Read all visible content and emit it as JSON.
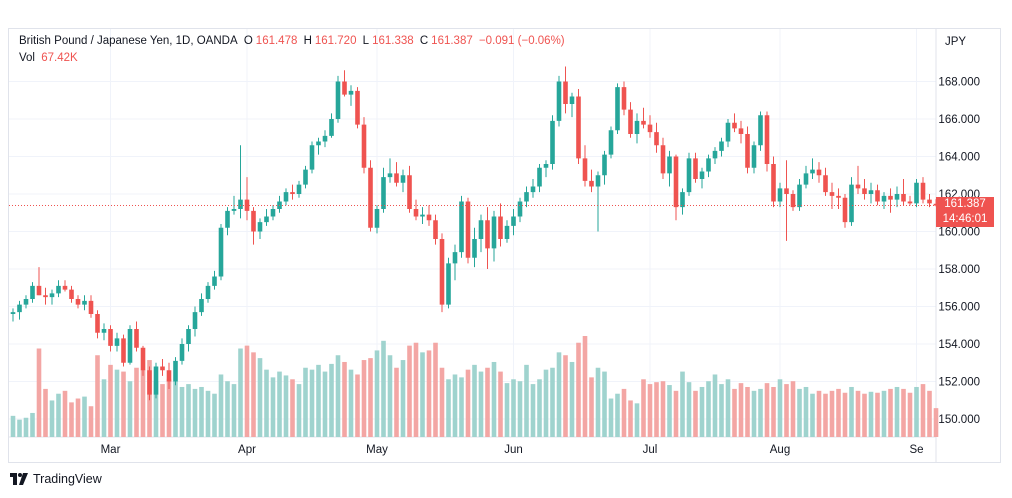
{
  "header": {
    "symbol": "British Pound / Japanese Yen, 1D, OANDA",
    "o_label": "O",
    "o_value": "161.478",
    "h_label": "H",
    "h_value": "161.720",
    "l_label": "L",
    "l_value": "161.338",
    "c_label": "C",
    "c_value": "161.387",
    "change": "−0.091 (−0.06%)",
    "vol_label": "Vol",
    "vol_value": "67.42K"
  },
  "price_tag": {
    "price": "161.387",
    "countdown": "14:46:01"
  },
  "footer": {
    "brand": "TradingView"
  },
  "colors": {
    "up": "#26a69a",
    "down": "#ef5350",
    "vol_up": "#9fd3ce",
    "vol_down": "#f3a6a4",
    "grid": "#f0f3fa"
  },
  "chart_data": {
    "type": "candlestick",
    "currency_label": "JPY",
    "y_ticks": [
      "150.000",
      "152.000",
      "154.000",
      "156.000",
      "158.000",
      "160.000",
      "162.000",
      "164.000",
      "166.000",
      "168.000"
    ],
    "ylim": [
      149.3,
      170.2
    ],
    "x_labels": [
      {
        "label": "Mar",
        "index": 15
      },
      {
        "label": "Apr",
        "index": 36
      },
      {
        "label": "May",
        "index": 56
      },
      {
        "label": "Jun",
        "index": 77
      },
      {
        "label": "Jul",
        "index": 98
      },
      {
        "label": "Aug",
        "index": 118
      },
      {
        "label": "Se",
        "index": 139
      }
    ],
    "last_close": 161.387,
    "candles": [
      [
        155.6,
        155.9,
        155.2,
        155.7,
        22
      ],
      [
        155.7,
        156.3,
        155.3,
        156.1,
        18
      ],
      [
        156.1,
        156.6,
        155.9,
        156.4,
        20
      ],
      [
        156.4,
        157.3,
        156.2,
        157.1,
        25
      ],
      [
        157.1,
        158.1,
        156.6,
        156.6,
        92
      ],
      [
        156.6,
        157.0,
        156.1,
        156.5,
        50
      ],
      [
        156.5,
        156.9,
        156.1,
        156.7,
        38
      ],
      [
        156.7,
        157.4,
        156.5,
        157.1,
        45
      ],
      [
        157.1,
        157.4,
        156.8,
        156.9,
        48
      ],
      [
        156.9,
        157.1,
        156.2,
        156.4,
        36
      ],
      [
        156.4,
        156.6,
        155.9,
        156.1,
        40
      ],
      [
        156.1,
        156.6,
        155.8,
        156.3,
        42
      ],
      [
        156.3,
        156.6,
        155.4,
        155.6,
        32
      ],
      [
        155.6,
        155.8,
        154.3,
        154.6,
        85
      ],
      [
        154.6,
        155.1,
        154.2,
        154.8,
        60
      ],
      [
        154.8,
        155.0,
        153.6,
        153.9,
        75
      ],
      [
        153.9,
        154.6,
        153.6,
        154.3,
        70
      ],
      [
        154.3,
        154.5,
        152.8,
        153.0,
        68
      ],
      [
        153.0,
        155.0,
        152.9,
        154.8,
        58
      ],
      [
        154.8,
        155.2,
        153.6,
        153.8,
        72
      ],
      [
        153.8,
        153.9,
        152.3,
        152.6,
        70
      ],
      [
        152.6,
        152.8,
        151.0,
        151.3,
        80
      ],
      [
        151.3,
        153.0,
        151.1,
        152.8,
        58
      ],
      [
        152.8,
        153.2,
        152.3,
        152.6,
        55
      ],
      [
        152.6,
        153.0,
        151.6,
        152.0,
        60
      ],
      [
        152.0,
        153.3,
        151.8,
        153.1,
        58
      ],
      [
        153.1,
        154.3,
        152.9,
        154.0,
        52
      ],
      [
        154.0,
        155.0,
        153.6,
        154.8,
        55
      ],
      [
        154.8,
        156.0,
        154.4,
        155.7,
        50
      ],
      [
        155.7,
        156.7,
        155.5,
        156.4,
        52
      ],
      [
        156.4,
        157.3,
        156.2,
        157.1,
        48
      ],
      [
        157.1,
        157.9,
        156.9,
        157.6,
        45
      ],
      [
        157.6,
        160.4,
        157.4,
        160.2,
        65
      ],
      [
        160.2,
        161.3,
        159.8,
        161.1,
        58
      ],
      [
        161.1,
        161.9,
        160.9,
        161.2,
        55
      ],
      [
        161.2,
        164.6,
        160.7,
        161.7,
        92
      ],
      [
        161.7,
        162.9,
        160.6,
        161.1,
        95
      ],
      [
        161.1,
        161.3,
        159.3,
        160.0,
        88
      ],
      [
        160.0,
        160.7,
        159.6,
        160.5,
        82
      ],
      [
        160.5,
        161.2,
        160.3,
        160.8,
        70
      ],
      [
        160.8,
        161.4,
        160.6,
        161.2,
        62
      ],
      [
        161.2,
        161.9,
        161.0,
        161.6,
        68
      ],
      [
        161.6,
        162.3,
        161.4,
        162.1,
        64
      ],
      [
        162.1,
        162.5,
        161.7,
        162.0,
        60
      ],
      [
        162.0,
        162.7,
        161.8,
        162.5,
        55
      ],
      [
        162.5,
        163.5,
        162.3,
        163.3,
        72
      ],
      [
        163.3,
        164.8,
        163.1,
        164.6,
        70
      ],
      [
        164.6,
        165.0,
        164.1,
        164.8,
        75
      ],
      [
        164.8,
        165.4,
        164.5,
        165.1,
        68
      ],
      [
        165.1,
        166.3,
        165.0,
        166.0,
        76
      ],
      [
        166.0,
        168.3,
        165.8,
        168.0,
        85
      ],
      [
        168.0,
        168.6,
        167.2,
        167.3,
        78
      ],
      [
        167.3,
        167.8,
        166.7,
        167.5,
        70
      ],
      [
        167.5,
        167.7,
        165.5,
        165.7,
        65
      ],
      [
        165.7,
        166.1,
        163.1,
        163.4,
        80
      ],
      [
        163.4,
        163.8,
        160.0,
        160.2,
        82
      ],
      [
        160.2,
        161.4,
        159.9,
        161.2,
        90
      ],
      [
        161.2,
        163.4,
        161.0,
        162.9,
        100
      ],
      [
        162.9,
        163.9,
        162.6,
        163.1,
        85
      ],
      [
        163.1,
        163.7,
        162.4,
        162.6,
        72
      ],
      [
        162.6,
        163.3,
        162.1,
        163.0,
        80
      ],
      [
        163.0,
        163.5,
        161.0,
        161.2,
        95
      ],
      [
        161.2,
        161.7,
        160.6,
        160.8,
        98
      ],
      [
        160.8,
        161.3,
        160.4,
        160.9,
        88
      ],
      [
        160.9,
        161.4,
        160.3,
        160.6,
        90
      ],
      [
        160.6,
        160.9,
        159.3,
        159.6,
        98
      ],
      [
        159.6,
        159.9,
        155.7,
        156.1,
        72
      ],
      [
        156.1,
        158.6,
        155.9,
        158.3,
        60
      ],
      [
        158.3,
        159.3,
        157.4,
        158.9,
        65
      ],
      [
        158.9,
        161.9,
        158.6,
        161.6,
        62
      ],
      [
        161.6,
        161.8,
        158.3,
        158.6,
        70
      ],
      [
        158.6,
        160.2,
        158.1,
        159.6,
        75
      ],
      [
        159.6,
        160.9,
        158.9,
        160.6,
        68
      ],
      [
        160.6,
        161.3,
        158.0,
        159.1,
        72
      ],
      [
        159.1,
        161.1,
        158.4,
        160.8,
        78
      ],
      [
        160.8,
        161.5,
        159.2,
        159.6,
        68
      ],
      [
        159.6,
        160.6,
        159.4,
        160.3,
        56
      ],
      [
        160.3,
        161.2,
        159.8,
        160.8,
        60
      ],
      [
        160.8,
        161.8,
        160.5,
        161.6,
        58
      ],
      [
        161.6,
        162.4,
        161.3,
        162.1,
        75
      ],
      [
        162.1,
        162.8,
        161.8,
        162.4,
        55
      ],
      [
        162.4,
        163.6,
        162.1,
        163.4,
        60
      ],
      [
        163.4,
        163.8,
        162.9,
        163.6,
        70
      ],
      [
        163.6,
        166.2,
        163.3,
        165.9,
        72
      ],
      [
        165.9,
        168.3,
        165.6,
        168.0,
        88
      ],
      [
        168.0,
        168.8,
        166.3,
        166.8,
        85
      ],
      [
        166.8,
        167.4,
        166.1,
        167.2,
        78
      ],
      [
        167.2,
        167.6,
        163.6,
        163.9,
        98
      ],
      [
        163.9,
        164.6,
        162.4,
        162.7,
        105
      ],
      [
        162.7,
        163.3,
        162.1,
        162.4,
        62
      ],
      [
        162.4,
        163.2,
        160.0,
        163.0,
        72
      ],
      [
        163.0,
        164.3,
        162.5,
        164.1,
        68
      ],
      [
        164.1,
        165.6,
        163.9,
        165.4,
        40
      ],
      [
        165.4,
        167.9,
        165.2,
        167.7,
        45
      ],
      [
        167.7,
        168.0,
        166.2,
        166.5,
        50
      ],
      [
        166.5,
        166.9,
        165.0,
        165.2,
        38
      ],
      [
        165.2,
        166.3,
        164.7,
        165.9,
        35
      ],
      [
        165.9,
        166.6,
        165.5,
        165.7,
        60
      ],
      [
        165.7,
        166.2,
        165.0,
        165.3,
        55
      ],
      [
        165.3,
        165.8,
        164.2,
        164.6,
        57
      ],
      [
        164.6,
        165.0,
        162.8,
        163.1,
        58
      ],
      [
        163.1,
        164.3,
        162.4,
        164.0,
        54
      ],
      [
        164.0,
        164.1,
        160.6,
        161.3,
        48
      ],
      [
        161.3,
        162.3,
        160.9,
        162.1,
        68
      ],
      [
        162.1,
        164.2,
        161.9,
        163.9,
        57
      ],
      [
        163.9,
        164.2,
        162.6,
        162.8,
        48
      ],
      [
        162.8,
        163.4,
        162.3,
        163.2,
        52
      ],
      [
        163.2,
        164.1,
        162.9,
        163.9,
        58
      ],
      [
        163.9,
        164.5,
        163.6,
        164.3,
        65
      ],
      [
        164.3,
        165.0,
        164.0,
        164.8,
        55
      ],
      [
        164.8,
        166.0,
        164.5,
        165.8,
        60
      ],
      [
        165.8,
        166.3,
        165.3,
        165.5,
        50
      ],
      [
        165.5,
        165.9,
        164.7,
        165.2,
        56
      ],
      [
        165.2,
        165.6,
        163.1,
        163.4,
        52
      ],
      [
        163.4,
        164.8,
        163.1,
        164.6,
        48
      ],
      [
        164.6,
        166.4,
        164.3,
        166.2,
        50
      ],
      [
        166.2,
        166.4,
        163.2,
        163.6,
        56
      ],
      [
        163.6,
        164.0,
        161.3,
        161.6,
        52
      ],
      [
        161.6,
        162.6,
        161.3,
        162.3,
        60
      ],
      [
        162.3,
        163.8,
        159.5,
        162.0,
        55
      ],
      [
        162.0,
        162.2,
        161.1,
        161.3,
        58
      ],
      [
        161.3,
        162.8,
        161.1,
        162.5,
        50
      ],
      [
        162.5,
        163.5,
        162.3,
        163.1,
        52
      ],
      [
        163.1,
        163.9,
        162.8,
        163.3,
        45
      ],
      [
        163.3,
        163.7,
        162.6,
        163.0,
        48
      ],
      [
        163.0,
        163.4,
        161.9,
        162.1,
        45
      ],
      [
        162.1,
        162.6,
        161.2,
        161.9,
        48
      ],
      [
        161.9,
        162.3,
        161.2,
        161.8,
        50
      ],
      [
        161.8,
        162.0,
        160.2,
        160.5,
        46
      ],
      [
        160.5,
        162.9,
        160.3,
        162.5,
        52
      ],
      [
        162.5,
        163.5,
        162.0,
        162.3,
        48
      ],
      [
        162.3,
        162.8,
        161.7,
        162.0,
        45
      ],
      [
        162.0,
        162.6,
        161.5,
        162.2,
        47
      ],
      [
        162.2,
        162.5,
        161.4,
        161.6,
        46
      ],
      [
        161.6,
        162.1,
        161.2,
        161.9,
        48
      ],
      [
        161.9,
        162.3,
        161.0,
        161.7,
        50
      ],
      [
        161.7,
        162.4,
        161.3,
        162.0,
        52
      ],
      [
        162.0,
        162.8,
        161.4,
        161.6,
        50
      ],
      [
        161.6,
        161.9,
        161.4,
        161.5,
        46
      ],
      [
        161.5,
        162.8,
        161.3,
        162.6,
        52
      ],
      [
        162.6,
        162.9,
        161.5,
        161.7,
        55
      ],
      [
        161.7,
        162.0,
        161.3,
        161.5,
        48
      ],
      [
        161.478,
        161.72,
        161.338,
        161.387,
        30
      ]
    ]
  }
}
